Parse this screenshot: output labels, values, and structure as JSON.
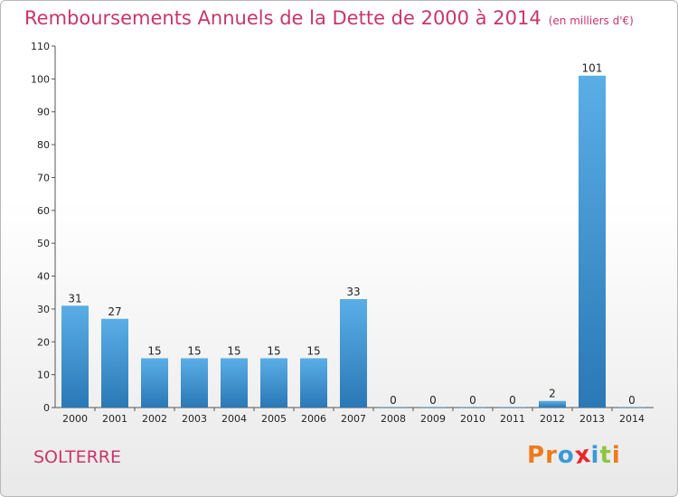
{
  "header": {
    "title": "Remboursements Annuels de la Dette de 2000 à 2014",
    "unit": "(en milliers d'€)"
  },
  "footer": {
    "town": "SOLTERRE",
    "logo": "Proxiti"
  },
  "colors": {
    "title": "#c8366a",
    "bar_top": "#5aaee6",
    "bar_bottom": "#2a78b6",
    "logo_letters": [
      "#f07a1a",
      "#f07a1a",
      "#3a9ad9",
      "#e8262c",
      "#3a9ad9",
      "#8dc63f",
      "#f07a1a"
    ]
  },
  "chart_data": {
    "type": "bar",
    "categories": [
      "2000",
      "2001",
      "2002",
      "2003",
      "2004",
      "2005",
      "2006",
      "2007",
      "2008",
      "2009",
      "2010",
      "2011",
      "2012",
      "2013",
      "2014"
    ],
    "values": [
      31,
      27,
      15,
      15,
      15,
      15,
      15,
      33,
      0,
      0,
      0,
      0,
      2,
      101,
      0
    ],
    "value_labels": [
      "31",
      "27",
      "15",
      "15",
      "15",
      "15",
      "15",
      "33",
      "0",
      "0",
      "0",
      "0",
      "2",
      "101",
      "0"
    ],
    "ylim": [
      0,
      110
    ],
    "yticks": [
      0,
      10,
      20,
      30,
      40,
      50,
      60,
      70,
      80,
      90,
      100,
      110
    ],
    "grid": false,
    "legend": "none"
  }
}
